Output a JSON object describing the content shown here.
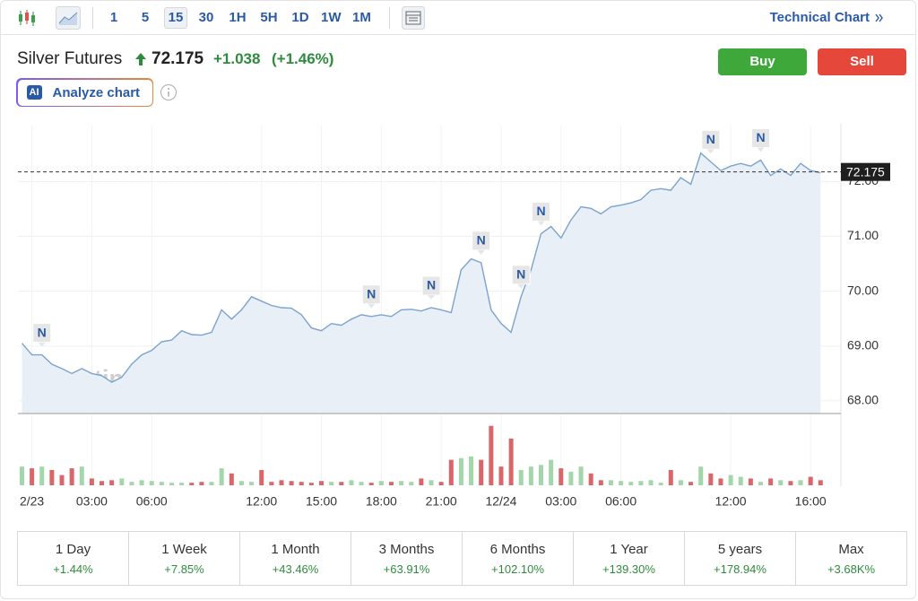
{
  "toolbar": {
    "intervals": [
      "1",
      "5",
      "15",
      "30",
      "1H",
      "5H",
      "1D",
      "1W",
      "1M"
    ],
    "active_interval": "15",
    "technical_link": "Technical Chart"
  },
  "header": {
    "title": "Silver Futures",
    "price": "72.175",
    "change": "+1.038",
    "change_pct": "(+1.46%)",
    "buy": "Buy",
    "sell": "Sell",
    "ai_badge": "AI",
    "analyze": "Analyze chart"
  },
  "chart_data": {
    "type": "line",
    "x": [
      0,
      1,
      2,
      3,
      4,
      5,
      6,
      7,
      8,
      9,
      10,
      11,
      12,
      13,
      14,
      15,
      16,
      17,
      18,
      19,
      20,
      21,
      22,
      23,
      24,
      25,
      26,
      27,
      28,
      29,
      30,
      31,
      32,
      33,
      34,
      35,
      36,
      37,
      38,
      39,
      40,
      41,
      42,
      43,
      44,
      45,
      46,
      47,
      48,
      49,
      50,
      51,
      52,
      53,
      54,
      55,
      56,
      57,
      58,
      59,
      60,
      61,
      62,
      63,
      64,
      65,
      66,
      67,
      68,
      69,
      70,
      71,
      72,
      73,
      74,
      75,
      76,
      77,
      78,
      79,
      80
    ],
    "values": [
      69.05,
      68.84,
      68.84,
      68.67,
      68.59,
      68.5,
      68.59,
      68.5,
      68.46,
      68.34,
      68.43,
      68.67,
      68.84,
      68.92,
      69.08,
      69.11,
      69.28,
      69.21,
      69.2,
      69.25,
      69.66,
      69.49,
      69.66,
      69.9,
      69.82,
      69.74,
      69.7,
      69.69,
      69.57,
      69.33,
      69.28,
      69.41,
      69.38,
      69.49,
      69.57,
      69.54,
      69.57,
      69.54,
      69.66,
      69.67,
      69.64,
      69.7,
      69.66,
      69.61,
      70.39,
      70.59,
      70.52,
      69.66,
      69.41,
      69.25,
      69.9,
      70.39,
      71.05,
      71.18,
      70.97,
      71.3,
      71.54,
      71.51,
      71.41,
      71.54,
      71.57,
      71.61,
      71.67,
      71.84,
      71.87,
      71.84,
      72.07,
      71.95,
      72.52,
      72.36,
      72.2,
      72.28,
      72.33,
      72.28,
      72.39,
      72.11,
      72.23,
      72.11,
      72.33,
      72.2,
      72.16
    ],
    "color": "#7ba3cf",
    "area_color": "#e9eff7",
    "xlim": [
      -0.4,
      80.6
    ],
    "ylim": [
      67.77,
      73.02
    ],
    "xticks": [
      {
        "value": 1,
        "label": "2/23"
      },
      {
        "value": 7,
        "label": "03:00"
      },
      {
        "value": 13,
        "label": "06:00"
      },
      {
        "value": 24,
        "label": "12:00"
      },
      {
        "value": 30,
        "label": "15:00"
      },
      {
        "value": 36,
        "label": "18:00"
      },
      {
        "value": 42,
        "label": "21:00"
      },
      {
        "value": 48,
        "label": "12/24"
      },
      {
        "value": 54,
        "label": "03:00"
      },
      {
        "value": 60,
        "label": "06:00"
      },
      {
        "value": 71,
        "label": "12:00"
      },
      {
        "value": 79,
        "label": "16:00"
      }
    ],
    "yticks": [
      {
        "value": 68,
        "label": "68.00"
      },
      {
        "value": 69,
        "label": "69.00"
      },
      {
        "value": 70,
        "label": "70.00"
      },
      {
        "value": 71,
        "label": "71.00"
      },
      {
        "value": 72,
        "label": "72.00"
      }
    ],
    "grid": true,
    "last_price": {
      "value": 72.175,
      "label": "72.175"
    },
    "news": [
      {
        "x": 2,
        "label": "N"
      },
      {
        "x": 35,
        "label": "N"
      },
      {
        "x": 41,
        "label": "N"
      },
      {
        "x": 46,
        "label": "N"
      },
      {
        "x": 50,
        "label": "N"
      },
      {
        "x": 52,
        "label": "N"
      },
      {
        "x": 69,
        "label": "N"
      },
      {
        "x": 74,
        "label": "N"
      }
    ],
    "volume": {
      "ylim": [
        0,
        75
      ],
      "up_color": "#a3d6aa",
      "down_color": "#d9676a",
      "values": [
        22,
        20,
        22,
        18,
        12,
        20,
        22,
        8,
        5,
        6,
        8,
        4,
        6,
        5,
        4,
        3,
        3,
        3,
        4,
        4,
        20,
        14,
        5,
        4,
        18,
        4,
        6,
        5,
        4,
        3,
        5,
        4,
        4,
        6,
        4,
        3,
        5,
        4,
        5,
        4,
        8,
        6,
        4,
        30,
        32,
        34,
        30,
        70,
        22,
        55,
        18,
        22,
        24,
        30,
        20,
        16,
        22,
        14,
        6,
        6,
        5,
        4,
        5,
        6,
        3,
        18,
        6,
        4,
        22,
        14,
        8,
        12,
        10,
        8,
        4,
        8,
        6,
        5,
        6,
        10,
        6
      ]
    },
    "watermark": {
      "brand": "Investing",
      "suffix": ".com"
    }
  },
  "performance": [
    {
      "period": "1 Day",
      "change": "+1.44%"
    },
    {
      "period": "1 Week",
      "change": "+7.85%"
    },
    {
      "period": "1 Month",
      "change": "+43.46%"
    },
    {
      "period": "3 Months",
      "change": "+63.91%"
    },
    {
      "period": "6 Months",
      "change": "+102.10%"
    },
    {
      "period": "1 Year",
      "change": "+139.30%"
    },
    {
      "period": "5 years",
      "change": "+178.94%"
    },
    {
      "period": "Max",
      "change": "+3.68K%"
    }
  ]
}
